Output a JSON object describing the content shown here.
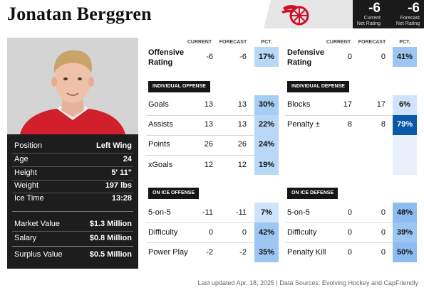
{
  "header": {
    "player_name": "Jonatan Berggren",
    "team_logo_icon": "red-wings-logo-icon",
    "current_net_rating": "-6",
    "current_net_rating_label_1": "Current",
    "current_net_rating_label_2": "Net Rating",
    "forecast_net_rating": "-6",
    "forecast_net_rating_label_1": "Forecast",
    "forecast_net_rating_label_2": "Net Rating"
  },
  "bio": [
    {
      "label": "Position",
      "value": "Left Wing"
    },
    {
      "label": "Age",
      "value": "24"
    },
    {
      "label": "Height",
      "value": "5' 11\""
    },
    {
      "label": "Weight",
      "value": "197 lbs"
    },
    {
      "label": "Ice Time",
      "value": "13:28"
    }
  ],
  "contract": [
    {
      "label": "Market Value",
      "value": "$1.3 Million"
    },
    {
      "label": "Salary",
      "value": "$0.8 Million"
    },
    {
      "label": "Surplus Value",
      "value": "$0.5 Million"
    }
  ],
  "columns": {
    "current": "CURRENT",
    "forecast": "FORECAST",
    "pct": "PCT."
  },
  "offensive_rating": {
    "label_1": "Offensive",
    "label_2": "Rating",
    "current": "-6",
    "forecast": "-6",
    "pct": "17%",
    "pct_value": 17
  },
  "defensive_rating": {
    "label_1": "Defensive",
    "label_2": "Rating",
    "current": "0",
    "forecast": "0",
    "pct": "41%",
    "pct_value": 41
  },
  "individual_offense": {
    "title": "INDIVIDUAL OFFENSE",
    "rows": [
      {
        "label": "Goals",
        "current": "13",
        "forecast": "13",
        "pct": "30%",
        "pct_value": 30
      },
      {
        "label": "Assists",
        "current": "13",
        "forecast": "13",
        "pct": "22%",
        "pct_value": 22
      },
      {
        "label": "Points",
        "current": "26",
        "forecast": "26",
        "pct": "24%",
        "pct_value": 24
      },
      {
        "label": "xGoals",
        "current": "12",
        "forecast": "12",
        "pct": "19%",
        "pct_value": 19
      }
    ]
  },
  "individual_defense": {
    "title": "INDIVIDUAL DEFENSE",
    "rows": [
      {
        "label": "Blocks",
        "current": "17",
        "forecast": "17",
        "pct": "6%",
        "pct_value": 6
      },
      {
        "label": "Penalty ±",
        "current": "8",
        "forecast": "8",
        "pct": "79%",
        "pct_value": 79
      }
    ]
  },
  "on_ice_offense": {
    "title": "ON ICE OFFENSE",
    "rows": [
      {
        "label": "5-on-5",
        "current": "-11",
        "forecast": "-11",
        "pct": "7%",
        "pct_value": 7
      },
      {
        "label": "Difficulty",
        "current": "0",
        "forecast": "0",
        "pct": "42%",
        "pct_value": 42
      },
      {
        "label": "Power Play",
        "current": "-2",
        "forecast": "-2",
        "pct": "35%",
        "pct_value": 35
      }
    ]
  },
  "on_ice_defense": {
    "title": "ON ICE DEFENSE",
    "rows": [
      {
        "label": "5-on-5",
        "current": "0",
        "forecast": "0",
        "pct": "48%",
        "pct_value": 48
      },
      {
        "label": "Difficulty",
        "current": "0",
        "forecast": "0",
        "pct": "39%",
        "pct_value": 39
      },
      {
        "label": "Penalty Kill",
        "current": "0",
        "forecast": "0",
        "pct": "50%",
        "pct_value": 50
      }
    ]
  },
  "footer": "Last updated Apr. 18, 2025 | Data Sources: Evolving Hockey and CapFriendly"
}
